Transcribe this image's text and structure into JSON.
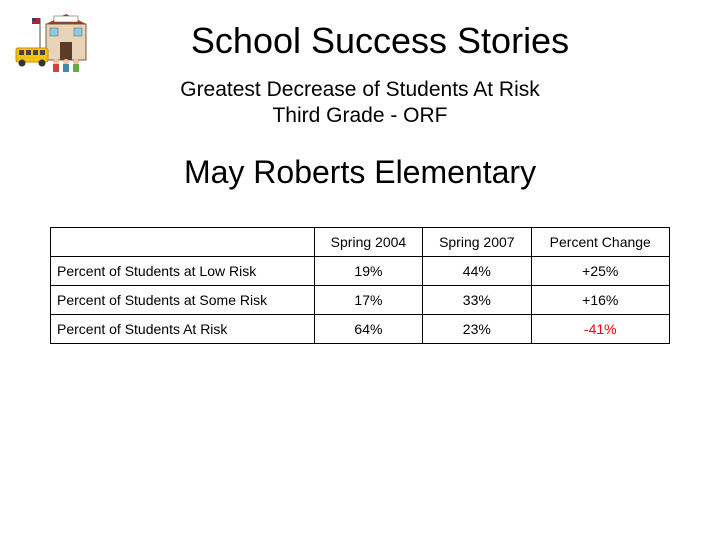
{
  "title": "School Success Stories",
  "subtitle_line1": "Greatest Decrease of Students At Risk",
  "subtitle_line2": "Third Grade - ORF",
  "school_name": "May Roberts Elementary",
  "table": {
    "columns": [
      "",
      "Spring 2004",
      "Spring 2007",
      "Percent Change"
    ],
    "rows": [
      {
        "label": "Percent of Students at Low Risk",
        "c1": "19%",
        "c2": "44%",
        "c3": "+25%",
        "highlight": false
      },
      {
        "label": "Percent of Students at Some Risk",
        "c1": "17%",
        "c2": "33%",
        "c3": "+16%",
        "highlight": false
      },
      {
        "label": "Percent of Students At Risk",
        "c1": "64%",
        "c2": "23%",
        "c3": "-41%",
        "highlight": true
      }
    ]
  },
  "colors": {
    "highlight": "#ff0000",
    "text": "#000000",
    "border": "#000000",
    "background": "#ffffff"
  }
}
